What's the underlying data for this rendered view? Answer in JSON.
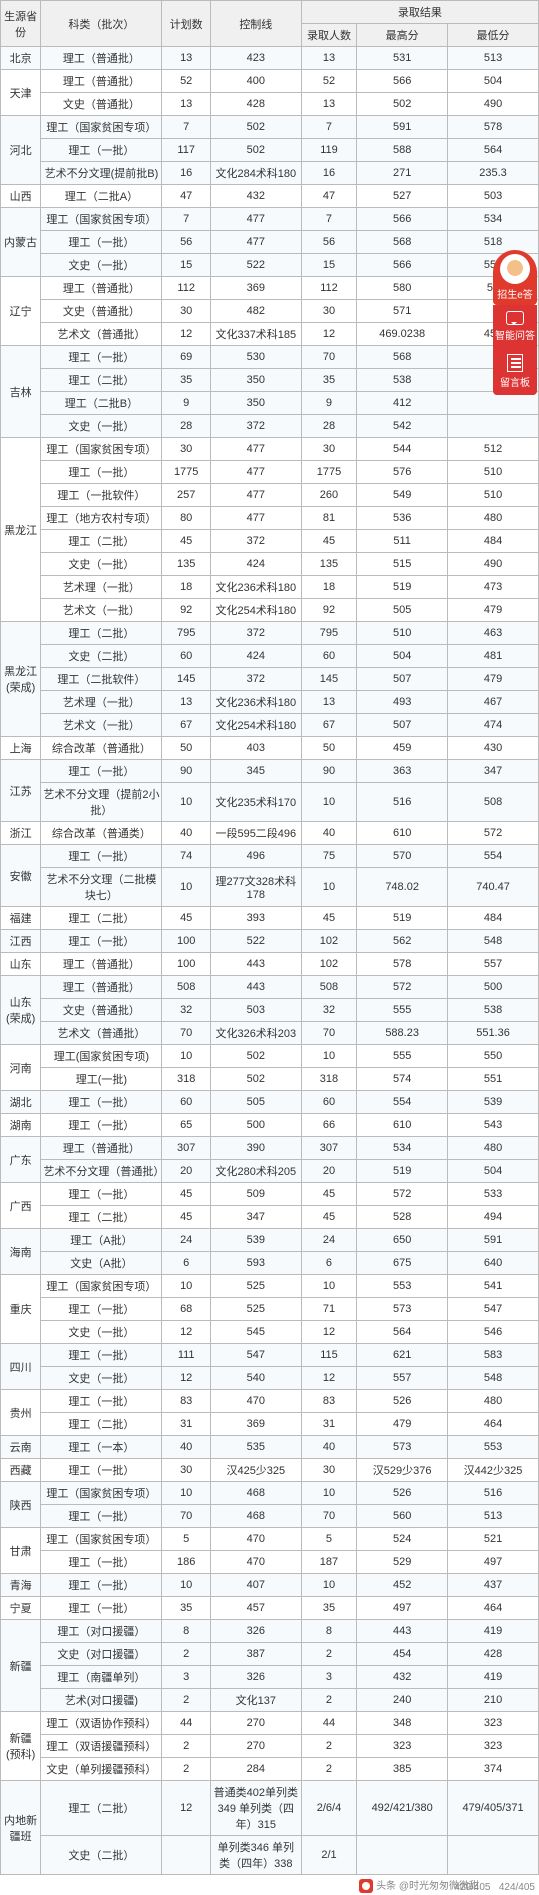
{
  "headers": {
    "province": "生源省份",
    "category": "科类（批次）",
    "plan": "计划数",
    "control": "控制线",
    "result_group": "录取结果",
    "admitted": "录取人数",
    "max": "最高分",
    "min": "最低分"
  },
  "col_widths": [
    "40",
    "120",
    "48",
    "90",
    "55",
    "90",
    "90"
  ],
  "widget": {
    "top": "招生e答",
    "mid": "智能问答",
    "bot": "留言板"
  },
  "footer": {
    "left_prefix": "头条",
    "left": "@时光匆匆微微甜",
    "r1": "429/405",
    "r2": "424/405"
  },
  "groups": [
    {
      "band": "a",
      "province": "北京",
      "rows": [
        {
          "cat": "理工（普通批）",
          "plan": "13",
          "ctrl": "423",
          "adm": "13",
          "max": "531",
          "min": "513"
        }
      ]
    },
    {
      "band": "b",
      "province": "天津",
      "rows": [
        {
          "cat": "理工（普通批）",
          "plan": "52",
          "ctrl": "400",
          "adm": "52",
          "max": "566",
          "min": "504"
        },
        {
          "cat": "文史（普通批）",
          "plan": "13",
          "ctrl": "428",
          "adm": "13",
          "max": "502",
          "min": "490"
        }
      ]
    },
    {
      "band": "a",
      "province": "河北",
      "rows": [
        {
          "cat": "理工（国家贫困专项）",
          "plan": "7",
          "ctrl": "502",
          "adm": "7",
          "max": "591",
          "min": "578"
        },
        {
          "cat": "理工（一批）",
          "plan": "117",
          "ctrl": "502",
          "adm": "119",
          "max": "588",
          "min": "564"
        },
        {
          "cat": "艺术不分文理(提前批B)",
          "plan": "16",
          "ctrl": "文化284术科180",
          "adm": "16",
          "max": "271",
          "min": "235.3"
        }
      ]
    },
    {
      "band": "b",
      "province": "山西",
      "rows": [
        {
          "cat": "理工（二批A）",
          "plan": "47",
          "ctrl": "432",
          "adm": "47",
          "max": "527",
          "min": "503"
        }
      ]
    },
    {
      "band": "a",
      "province": "内蒙古",
      "rows": [
        {
          "cat": "理工（国家贫困专项）",
          "plan": "7",
          "ctrl": "477",
          "adm": "7",
          "max": "566",
          "min": "534"
        },
        {
          "cat": "理工（一批）",
          "plan": "56",
          "ctrl": "477",
          "adm": "56",
          "max": "568",
          "min": "518"
        },
        {
          "cat": "文史（一批）",
          "plan": "15",
          "ctrl": "522",
          "adm": "15",
          "max": "566",
          "min": "551"
        }
      ]
    },
    {
      "band": "b",
      "province": "辽宁",
      "rows": [
        {
          "cat": "理工（普通批）",
          "plan": "112",
          "ctrl": "369",
          "adm": "112",
          "max": "580",
          "min": "52"
        },
        {
          "cat": "文史（普通批）",
          "plan": "30",
          "ctrl": "482",
          "adm": "30",
          "max": "571",
          "min": ""
        },
        {
          "cat": "艺术文（普通批）",
          "plan": "12",
          "ctrl": "文化337术科185",
          "adm": "12",
          "max": "469.0238",
          "min": "450"
        }
      ]
    },
    {
      "band": "a",
      "province": "吉林",
      "rows": [
        {
          "cat": "理工（一批）",
          "plan": "69",
          "ctrl": "530",
          "adm": "70",
          "max": "568",
          "min": ""
        },
        {
          "cat": "理工（二批）",
          "plan": "35",
          "ctrl": "350",
          "adm": "35",
          "max": "538",
          "min": ""
        },
        {
          "cat": "理工（二批B）",
          "plan": "9",
          "ctrl": "350",
          "adm": "9",
          "max": "412",
          "min": ""
        },
        {
          "cat": "文史（一批）",
          "plan": "28",
          "ctrl": "372",
          "adm": "28",
          "max": "542",
          "min": ""
        }
      ]
    },
    {
      "band": "b",
      "province": "黑龙江",
      "rows": [
        {
          "cat": "理工（国家贫困专项）",
          "plan": "30",
          "ctrl": "477",
          "adm": "30",
          "max": "544",
          "min": "512"
        },
        {
          "cat": "理工（一批）",
          "plan": "1775",
          "ctrl": "477",
          "adm": "1775",
          "max": "576",
          "min": "510"
        },
        {
          "cat": "理工（一批软件）",
          "plan": "257",
          "ctrl": "477",
          "adm": "260",
          "max": "549",
          "min": "510"
        },
        {
          "cat": "理工（地方农村专项）",
          "plan": "80",
          "ctrl": "477",
          "adm": "81",
          "max": "536",
          "min": "480"
        },
        {
          "cat": "理工（二批）",
          "plan": "45",
          "ctrl": "372",
          "adm": "45",
          "max": "511",
          "min": "484"
        },
        {
          "cat": "文史（一批）",
          "plan": "135",
          "ctrl": "424",
          "adm": "135",
          "max": "515",
          "min": "490"
        },
        {
          "cat": "艺术理（一批）",
          "plan": "18",
          "ctrl": "文化236术科180",
          "adm": "18",
          "max": "519",
          "min": "473"
        },
        {
          "cat": "艺术文（一批）",
          "plan": "92",
          "ctrl": "文化254术科180",
          "adm": "92",
          "max": "505",
          "min": "479"
        }
      ]
    },
    {
      "band": "a",
      "province": "黑龙江(荣成)",
      "rows": [
        {
          "cat": "理工（二批）",
          "plan": "795",
          "ctrl": "372",
          "adm": "795",
          "max": "510",
          "min": "463"
        },
        {
          "cat": "文史（二批）",
          "plan": "60",
          "ctrl": "424",
          "adm": "60",
          "max": "504",
          "min": "481"
        },
        {
          "cat": "理工（二批软件）",
          "plan": "145",
          "ctrl": "372",
          "adm": "145",
          "max": "507",
          "min": "479"
        },
        {
          "cat": "艺术理（一批）",
          "plan": "13",
          "ctrl": "文化236术科180",
          "adm": "13",
          "max": "493",
          "min": "467"
        },
        {
          "cat": "艺术文（一批）",
          "plan": "67",
          "ctrl": "文化254术科180",
          "adm": "67",
          "max": "507",
          "min": "474"
        }
      ]
    },
    {
      "band": "b",
      "province": "上海",
      "rows": [
        {
          "cat": "综合改革（普通批）",
          "plan": "50",
          "ctrl": "403",
          "adm": "50",
          "max": "459",
          "min": "430"
        }
      ]
    },
    {
      "band": "a",
      "province": "江苏",
      "rows": [
        {
          "cat": "理工（一批）",
          "plan": "90",
          "ctrl": "345",
          "adm": "90",
          "max": "363",
          "min": "347"
        },
        {
          "cat": "艺术不分文理（提前2小批）",
          "plan": "10",
          "ctrl": "文化235术科170",
          "adm": "10",
          "max": "516",
          "min": "508"
        }
      ]
    },
    {
      "band": "b",
      "province": "浙江",
      "rows": [
        {
          "cat": "综合改革（普通类）",
          "plan": "40",
          "ctrl": "一段595二段496",
          "adm": "40",
          "max": "610",
          "min": "572"
        }
      ]
    },
    {
      "band": "a",
      "province": "安徽",
      "rows": [
        {
          "cat": "理工（一批）",
          "plan": "74",
          "ctrl": "496",
          "adm": "75",
          "max": "570",
          "min": "554"
        },
        {
          "cat": "艺术不分文理（二批模块七）",
          "plan": "10",
          "ctrl": "理277文328术科178",
          "adm": "10",
          "max": "748.02",
          "min": "740.47"
        }
      ]
    },
    {
      "band": "b",
      "province": "福建",
      "rows": [
        {
          "cat": "理工（二批）",
          "plan": "45",
          "ctrl": "393",
          "adm": "45",
          "max": "519",
          "min": "484"
        }
      ]
    },
    {
      "band": "a",
      "province": "江西",
      "rows": [
        {
          "cat": "理工（一批）",
          "plan": "100",
          "ctrl": "522",
          "adm": "102",
          "max": "562",
          "min": "548"
        }
      ]
    },
    {
      "band": "b",
      "province": "山东",
      "rows": [
        {
          "cat": "理工（普通批）",
          "plan": "100",
          "ctrl": "443",
          "adm": "102",
          "max": "578",
          "min": "557"
        }
      ]
    },
    {
      "band": "a",
      "province": "山东(荣成)",
      "rows": [
        {
          "cat": "理工（普通批）",
          "plan": "508",
          "ctrl": "443",
          "adm": "508",
          "max": "572",
          "min": "500"
        },
        {
          "cat": "文史（普通批）",
          "plan": "32",
          "ctrl": "503",
          "adm": "32",
          "max": "555",
          "min": "538"
        },
        {
          "cat": "艺术文（普通批）",
          "plan": "70",
          "ctrl": "文化326术科203",
          "adm": "70",
          "max": "588.23",
          "min": "551.36"
        }
      ]
    },
    {
      "band": "b",
      "province": "河南",
      "rows": [
        {
          "cat": "理工(国家贫困专项)",
          "plan": "10",
          "ctrl": "502",
          "adm": "10",
          "max": "555",
          "min": "550"
        },
        {
          "cat": "理工(一批)",
          "plan": "318",
          "ctrl": "502",
          "adm": "318",
          "max": "574",
          "min": "551"
        }
      ]
    },
    {
      "band": "a",
      "province": "湖北",
      "rows": [
        {
          "cat": "理工（一批）",
          "plan": "60",
          "ctrl": "505",
          "adm": "60",
          "max": "554",
          "min": "539"
        }
      ]
    },
    {
      "band": "b",
      "province": "湖南",
      "rows": [
        {
          "cat": "理工（一批）",
          "plan": "65",
          "ctrl": "500",
          "adm": "66",
          "max": "610",
          "min": "543"
        }
      ]
    },
    {
      "band": "a",
      "province": "广东",
      "rows": [
        {
          "cat": "理工（普通批）",
          "plan": "307",
          "ctrl": "390",
          "adm": "307",
          "max": "534",
          "min": "480"
        },
        {
          "cat": "艺术不分文理（普通批）",
          "plan": "20",
          "ctrl": "文化280术科205",
          "adm": "20",
          "max": "519",
          "min": "504"
        }
      ]
    },
    {
      "band": "b",
      "province": "广西",
      "rows": [
        {
          "cat": "理工（一批）",
          "plan": "45",
          "ctrl": "509",
          "adm": "45",
          "max": "572",
          "min": "533"
        },
        {
          "cat": "理工（二批）",
          "plan": "45",
          "ctrl": "347",
          "adm": "45",
          "max": "528",
          "min": "494"
        }
      ]
    },
    {
      "band": "a",
      "province": "海南",
      "rows": [
        {
          "cat": "理工（A批）",
          "plan": "24",
          "ctrl": "539",
          "adm": "24",
          "max": "650",
          "min": "591"
        },
        {
          "cat": "文史（A批）",
          "plan": "6",
          "ctrl": "593",
          "adm": "6",
          "max": "675",
          "min": "640"
        }
      ]
    },
    {
      "band": "b",
      "province": "重庆",
      "rows": [
        {
          "cat": "理工（国家贫困专项）",
          "plan": "10",
          "ctrl": "525",
          "adm": "10",
          "max": "553",
          "min": "541"
        },
        {
          "cat": "理工（一批）",
          "plan": "68",
          "ctrl": "525",
          "adm": "71",
          "max": "573",
          "min": "547"
        },
        {
          "cat": "文史（一批）",
          "plan": "12",
          "ctrl": "545",
          "adm": "12",
          "max": "564",
          "min": "546"
        }
      ]
    },
    {
      "band": "a",
      "province": "四川",
      "rows": [
        {
          "cat": "理工（一批）",
          "plan": "111",
          "ctrl": "547",
          "adm": "115",
          "max": "621",
          "min": "583"
        },
        {
          "cat": "文史（一批）",
          "plan": "12",
          "ctrl": "540",
          "adm": "12",
          "max": "557",
          "min": "548"
        }
      ]
    },
    {
      "band": "b",
      "province": "贵州",
      "rows": [
        {
          "cat": "理工（一批）",
          "plan": "83",
          "ctrl": "470",
          "adm": "83",
          "max": "526",
          "min": "480"
        },
        {
          "cat": "理工（二批）",
          "plan": "31",
          "ctrl": "369",
          "adm": "31",
          "max": "479",
          "min": "464"
        }
      ]
    },
    {
      "band": "a",
      "province": "云南",
      "rows": [
        {
          "cat": "理工（一本）",
          "plan": "40",
          "ctrl": "535",
          "adm": "40",
          "max": "573",
          "min": "553"
        }
      ]
    },
    {
      "band": "b",
      "province": "西藏",
      "rows": [
        {
          "cat": "理工（一批）",
          "plan": "30",
          "ctrl": "汉425少325",
          "adm": "30",
          "max": "汉529少376",
          "min": "汉442少325"
        }
      ]
    },
    {
      "band": "a",
      "province": "陕西",
      "rows": [
        {
          "cat": "理工（国家贫困专项）",
          "plan": "10",
          "ctrl": "468",
          "adm": "10",
          "max": "526",
          "min": "516"
        },
        {
          "cat": "理工（一批）",
          "plan": "70",
          "ctrl": "468",
          "adm": "70",
          "max": "560",
          "min": "513"
        }
      ]
    },
    {
      "band": "b",
      "province": "甘肃",
      "rows": [
        {
          "cat": "理工（国家贫困专项）",
          "plan": "5",
          "ctrl": "470",
          "adm": "5",
          "max": "524",
          "min": "521"
        },
        {
          "cat": "理工（一批）",
          "plan": "186",
          "ctrl": "470",
          "adm": "187",
          "max": "529",
          "min": "497"
        }
      ]
    },
    {
      "band": "a",
      "province": "青海",
      "rows": [
        {
          "cat": "理工（一批）",
          "plan": "10",
          "ctrl": "407",
          "adm": "10",
          "max": "452",
          "min": "437"
        }
      ]
    },
    {
      "band": "b",
      "province": "宁夏",
      "rows": [
        {
          "cat": "理工（一批）",
          "plan": "35",
          "ctrl": "457",
          "adm": "35",
          "max": "497",
          "min": "464"
        }
      ]
    },
    {
      "band": "a",
      "province": "新疆",
      "rows": [
        {
          "cat": "理工（对口援疆）",
          "plan": "8",
          "ctrl": "326",
          "adm": "8",
          "max": "443",
          "min": "419"
        },
        {
          "cat": "文史（对口援疆）",
          "plan": "2",
          "ctrl": "387",
          "adm": "2",
          "max": "454",
          "min": "428"
        },
        {
          "cat": "理工（南疆单列）",
          "plan": "3",
          "ctrl": "326",
          "adm": "3",
          "max": "432",
          "min": "419"
        },
        {
          "cat": "艺术(对口援疆)",
          "plan": "2",
          "ctrl": "文化137",
          "adm": "2",
          "max": "240",
          "min": "210"
        }
      ]
    },
    {
      "band": "b",
      "province": "新疆(预科)",
      "rows": [
        {
          "cat": "理工（双语协作预科）",
          "plan": "44",
          "ctrl": "270",
          "adm": "44",
          "max": "348",
          "min": "323"
        },
        {
          "cat": "理工（双语援疆预科）",
          "plan": "2",
          "ctrl": "270",
          "adm": "2",
          "max": "323",
          "min": "323"
        },
        {
          "cat": "文史（单列援疆预科）",
          "plan": "2",
          "ctrl": "284",
          "adm": "2",
          "max": "385",
          "min": "374"
        }
      ]
    },
    {
      "band": "a",
      "province": "内地新疆班",
      "rows": [
        {
          "cat": "理工（二批）",
          "plan": "12",
          "ctrl": "普通类402单列类349 单列类（四年）315",
          "adm": "2/6/4",
          "max": "492/421/380",
          "min": "479/405/371"
        },
        {
          "cat": "文史（二批）",
          "plan": "",
          "ctrl": "单列类346 单列类（四年）338",
          "adm": "2/1",
          "max": "",
          "min": ""
        }
      ]
    }
  ]
}
